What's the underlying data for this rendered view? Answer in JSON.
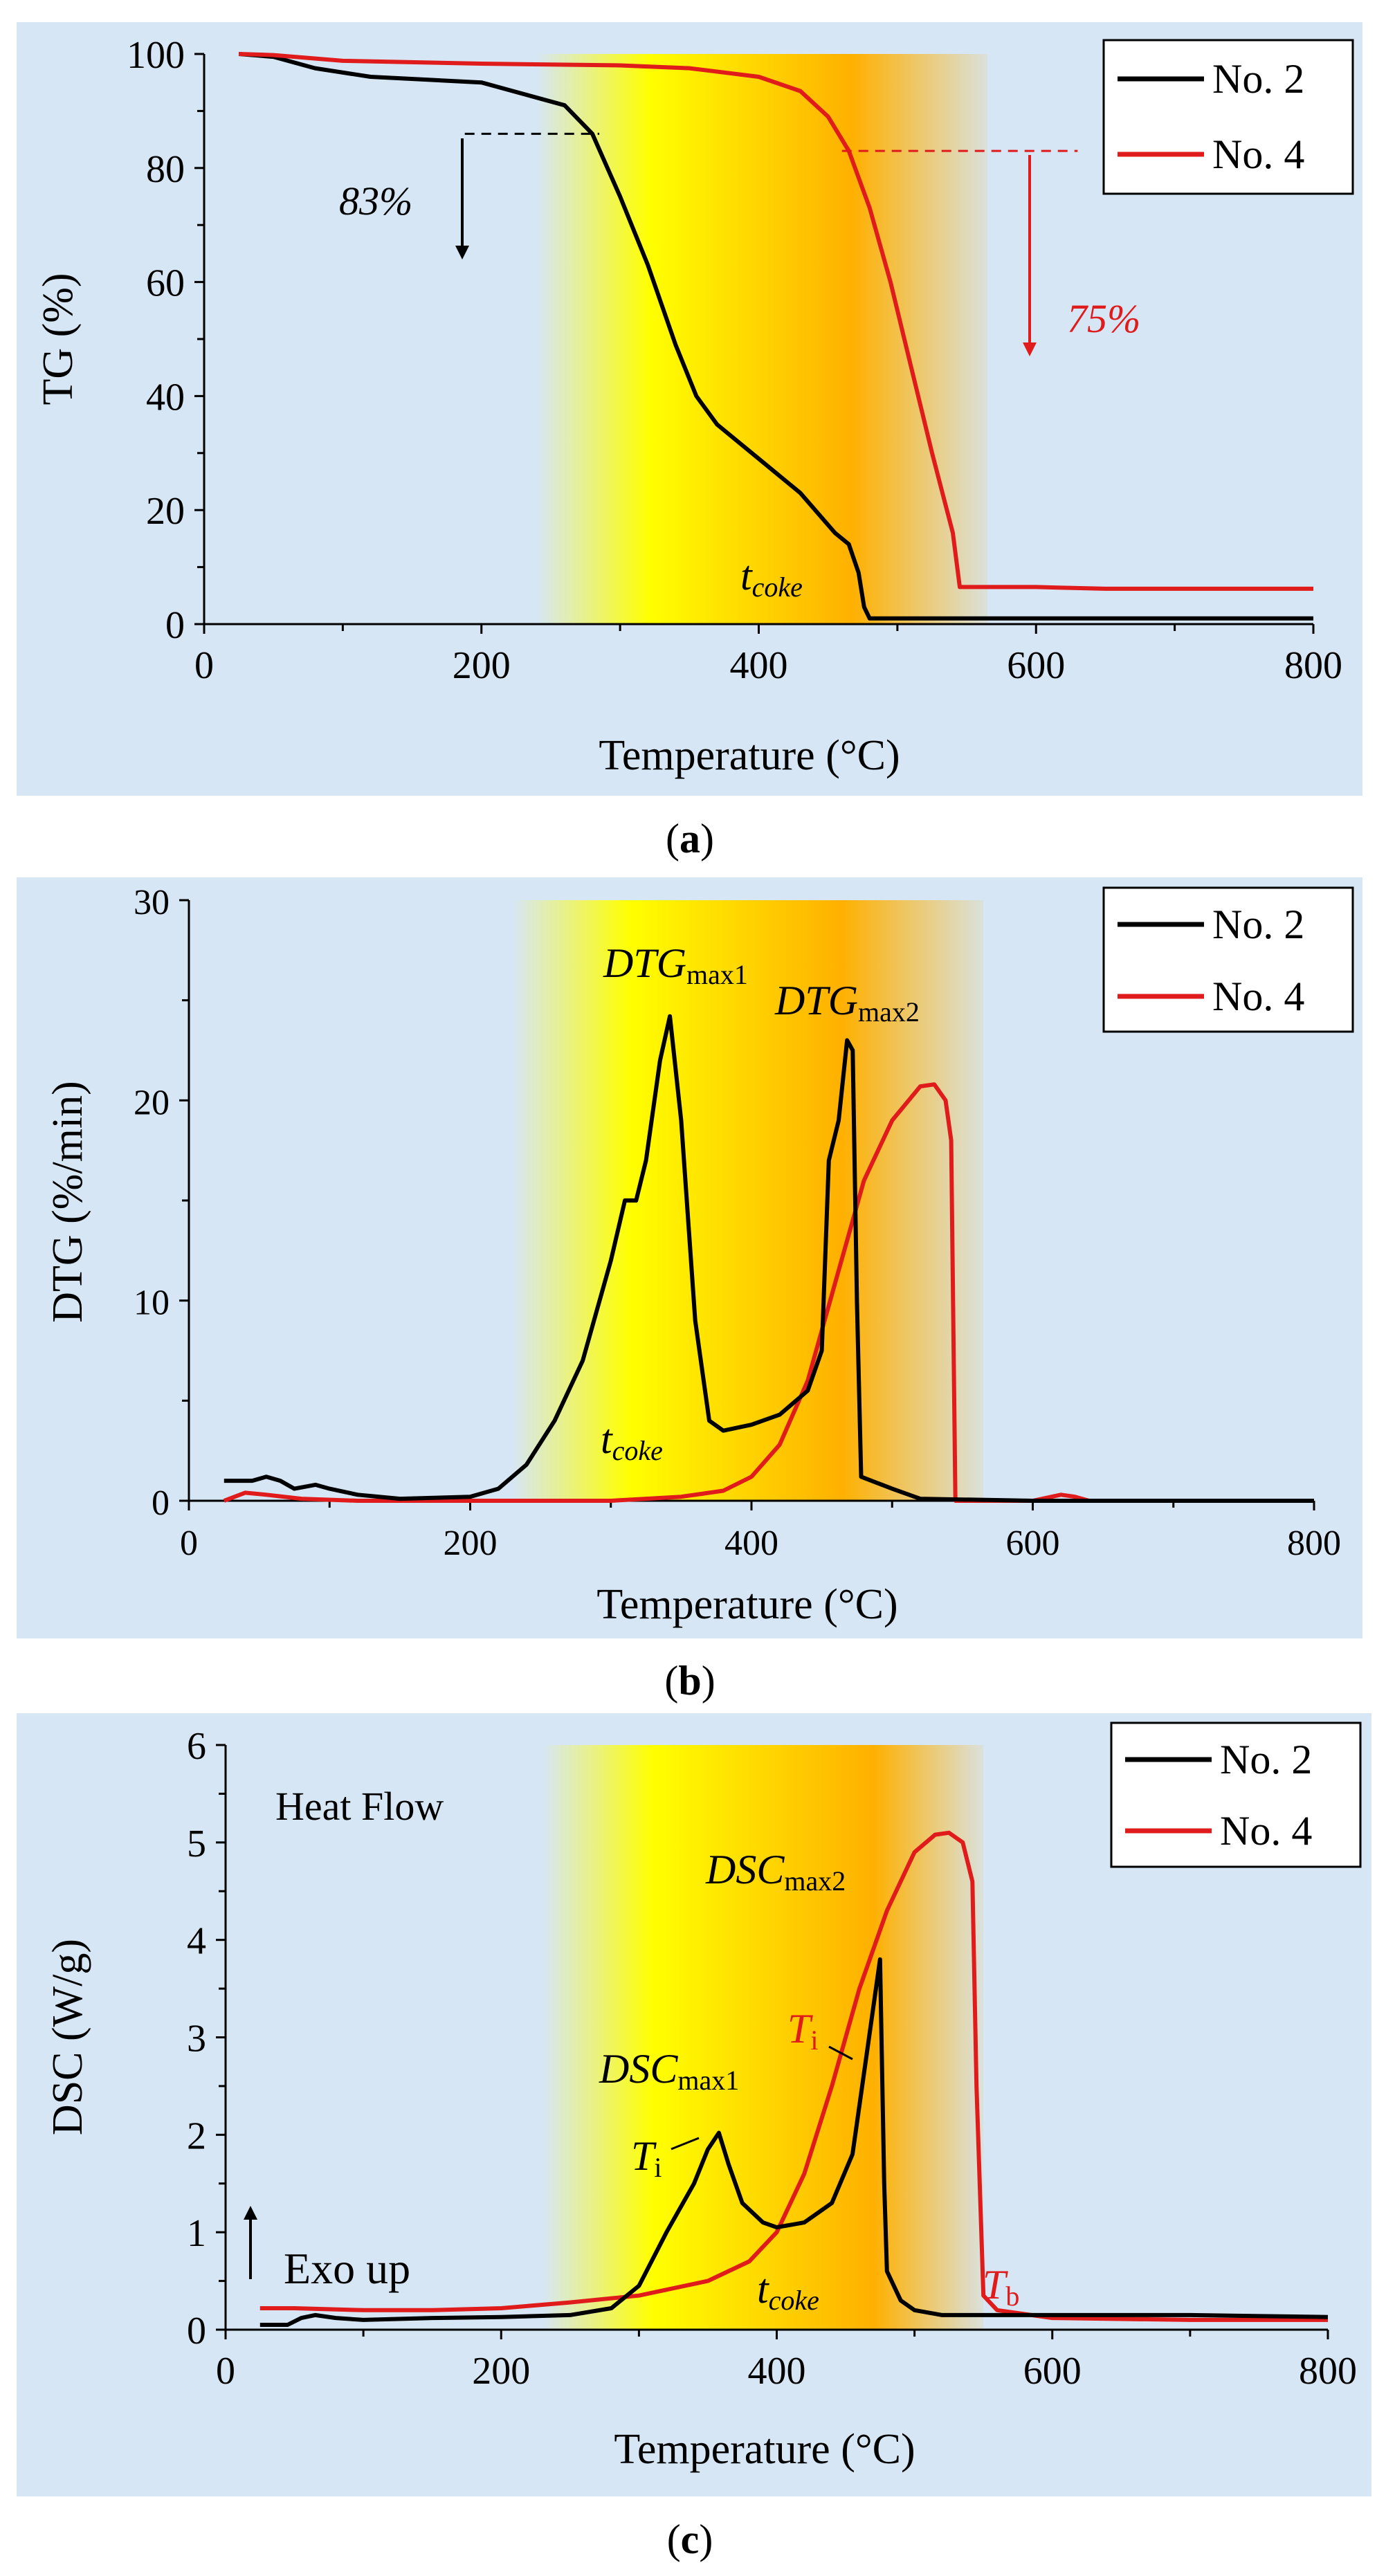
{
  "colors": {
    "panel_bg": "#d6e6f4",
    "no2": "#000000",
    "no4": "#e01b1b",
    "grad_yellow": "#ffff00",
    "grad_orange": "#ffb000"
  },
  "legend": {
    "no2": "No. 2",
    "no4": "No. 4"
  },
  "chart_data": [
    {
      "type": "line",
      "panel_label": "(a)",
      "xlabel": "Temperature  (°C)",
      "ylabel": "TG (%)",
      "xlim": [
        0,
        800
      ],
      "ylim": [
        0,
        100
      ],
      "xticks": [
        0,
        200,
        400,
        600,
        800
      ],
      "yticks": [
        0,
        20,
        40,
        60,
        80,
        100
      ],
      "highlight_range": [
        240,
        565
      ],
      "annotations": {
        "no2_loss": "83%",
        "no4_loss": "75%",
        "tcoke_t": "t",
        "tcoke_sub": "coke"
      },
      "series": [
        {
          "name": "No. 2",
          "x": [
            25,
            50,
            65,
            80,
            120,
            200,
            260,
            280,
            300,
            320,
            340,
            355,
            370,
            400,
            430,
            455,
            465,
            472,
            476,
            480,
            500,
            600,
            700,
            800
          ],
          "y": [
            100,
            99.5,
            98.5,
            97.5,
            96,
            95,
            91,
            86,
            75,
            63,
            49,
            40,
            35,
            29,
            23,
            16,
            14,
            9,
            3,
            1,
            1,
            1,
            1,
            1
          ]
        },
        {
          "name": "No. 4",
          "x": [
            25,
            50,
            100,
            200,
            300,
            350,
            400,
            430,
            450,
            465,
            480,
            495,
            510,
            525,
            540,
            545,
            560,
            600,
            650,
            700,
            800
          ],
          "y": [
            100,
            99.8,
            98.8,
            98.3,
            98,
            97.5,
            96,
            93.5,
            89,
            83,
            73,
            60,
            45,
            30,
            16,
            6.5,
            6.5,
            6.5,
            6.2,
            6.2,
            6.2
          ]
        }
      ]
    },
    {
      "type": "line",
      "panel_label": "(b)",
      "xlabel": "Temperature  (°C)",
      "ylabel": "DTG (%/min)",
      "xlim": [
        0,
        800
      ],
      "ylim": [
        0,
        30
      ],
      "xticks": [
        0,
        200,
        400,
        600,
        800
      ],
      "yticks": [
        0,
        10,
        20,
        30
      ],
      "highlight_range": [
        230,
        565
      ],
      "annotations": {
        "peak1_main": "DTG",
        "peak1_sub": "max1",
        "peak2_main": "DTG",
        "peak2_sub": "max2",
        "tcoke_t": "t",
        "tcoke_sub": "coke"
      },
      "series": [
        {
          "name": "No. 2",
          "x": [
            25,
            45,
            55,
            65,
            75,
            90,
            100,
            120,
            150,
            200,
            220,
            240,
            260,
            280,
            300,
            310,
            318,
            325,
            335,
            342,
            350,
            360,
            370,
            380,
            400,
            420,
            440,
            450,
            455,
            462,
            468,
            472,
            475,
            478,
            500,
            520,
            600,
            700,
            800
          ],
          "y": [
            1,
            1,
            1.2,
            1.0,
            0.6,
            0.8,
            0.6,
            0.3,
            0.1,
            0.2,
            0.6,
            1.8,
            4,
            7,
            12,
            15,
            15,
            17,
            22,
            24.2,
            19,
            9,
            4,
            3.5,
            3.8,
            4.3,
            5.5,
            7.5,
            17,
            19,
            23,
            22.5,
            10,
            1.2,
            0.6,
            0.1,
            0,
            0,
            0
          ]
        },
        {
          "name": "No. 4",
          "x": [
            25,
            40,
            55,
            80,
            120,
            200,
            300,
            350,
            380,
            400,
            420,
            440,
            460,
            480,
            500,
            520,
            530,
            538,
            542,
            545,
            560,
            600,
            620,
            630,
            640,
            700,
            800
          ],
          "y": [
            0,
            0.4,
            0.3,
            0.1,
            0,
            0,
            0,
            0.2,
            0.5,
            1.2,
            2.8,
            6,
            11,
            16,
            19,
            20.7,
            20.8,
            20,
            18,
            0,
            0,
            0,
            0.3,
            0.2,
            0,
            0,
            0
          ]
        }
      ]
    },
    {
      "type": "line",
      "panel_label": "(c)",
      "xlabel": "Temperature  (°C)",
      "ylabel": "DSC (W/g)",
      "xlim": [
        0,
        800
      ],
      "ylim": [
        0,
        6
      ],
      "xticks": [
        0,
        200,
        400,
        600,
        800
      ],
      "yticks": [
        0,
        1,
        2,
        3,
        4,
        5,
        6
      ],
      "highlight_range": [
        230,
        550
      ],
      "annotations": {
        "heat_flow": "Heat Flow",
        "exo_up": "Exo up",
        "dscmax1_main": "DSC",
        "dscmax1_sub": "max1",
        "dscmax2_main": "DSC",
        "dscmax2_sub": "max2",
        "ti_black_main": "T",
        "ti_black_sub": "i",
        "ti_red_main": "T",
        "ti_red_sub": "i",
        "tb_main": "T",
        "tb_sub": "b",
        "tcoke_t": "t",
        "tcoke_sub": "coke"
      },
      "series": [
        {
          "name": "No. 2",
          "x": [
            25,
            45,
            55,
            65,
            80,
            100,
            150,
            200,
            250,
            280,
            300,
            320,
            340,
            350,
            358,
            365,
            375,
            390,
            400,
            420,
            440,
            455,
            462,
            470,
            475,
            478,
            480,
            490,
            500,
            520,
            560,
            700,
            800
          ],
          "y": [
            0.05,
            0.05,
            0.12,
            0.15,
            0.12,
            0.1,
            0.12,
            0.13,
            0.15,
            0.22,
            0.45,
            1.0,
            1.5,
            1.85,
            2.02,
            1.7,
            1.3,
            1.1,
            1.05,
            1.1,
            1.3,
            1.8,
            2.5,
            3.3,
            3.8,
            1.5,
            0.6,
            0.3,
            0.2,
            0.15,
            0.15,
            0.15,
            0.13
          ]
        },
        {
          "name": "No. 4",
          "x": [
            25,
            50,
            100,
            150,
            200,
            250,
            300,
            350,
            380,
            400,
            420,
            440,
            460,
            480,
            500,
            515,
            525,
            535,
            542,
            545,
            550,
            560,
            600,
            700,
            800
          ],
          "y": [
            0.22,
            0.22,
            0.2,
            0.2,
            0.22,
            0.28,
            0.35,
            0.5,
            0.7,
            1.0,
            1.6,
            2.5,
            3.5,
            4.3,
            4.9,
            5.08,
            5.1,
            5.0,
            4.6,
            2.5,
            0.35,
            0.2,
            0.12,
            0.1,
            0.1
          ]
        }
      ]
    }
  ]
}
